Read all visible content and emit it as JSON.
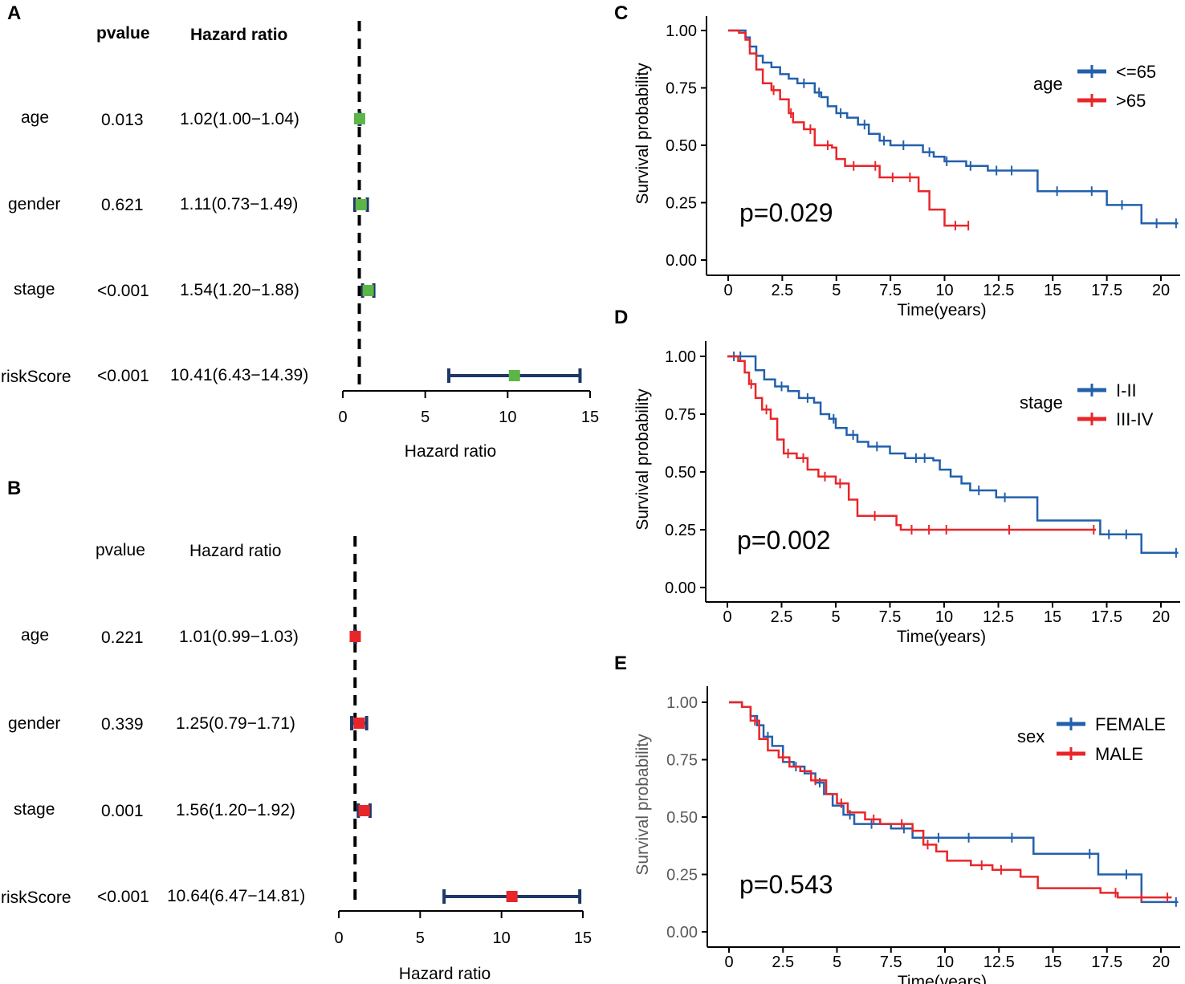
{
  "chart_data": [
    {
      "panel": "A",
      "type": "forest",
      "col_headers": {
        "pvalue": "pvalue",
        "hr": "Hazard ratio"
      },
      "rows": [
        {
          "label": "age",
          "pvalue": "0.013",
          "hr_text": "1.02(1.00−1.04)",
          "hr": 1.02,
          "low": 1.0,
          "high": 1.04
        },
        {
          "label": "gender",
          "pvalue": "0.621",
          "hr_text": "1.11(0.73−1.49)",
          "hr": 1.11,
          "low": 0.73,
          "high": 1.49
        },
        {
          "label": "stage",
          "pvalue": "<0.001",
          "hr_text": "1.54(1.20−1.88)",
          "hr": 1.54,
          "low": 1.2,
          "high": 1.88
        },
        {
          "label": "riskScore",
          "pvalue": "<0.001",
          "hr_text": "10.41(6.43−14.39)",
          "hr": 10.41,
          "low": 6.43,
          "high": 14.39
        }
      ],
      "xlabel": "Hazard ratio",
      "xticks": [
        0,
        5,
        10,
        15
      ],
      "xlim": [
        0,
        15
      ],
      "reference_line": 1,
      "marker_color": "#5BB646",
      "ci_color": "#1F3769"
    },
    {
      "panel": "B",
      "type": "forest",
      "col_headers": {
        "pvalue": "pvalue",
        "hr": "Hazard ratio"
      },
      "rows": [
        {
          "label": "age",
          "pvalue": "0.221",
          "hr_text": "1.01(0.99−1.03)",
          "hr": 1.01,
          "low": 0.99,
          "high": 1.03
        },
        {
          "label": "gender",
          "pvalue": "0.339",
          "hr_text": "1.25(0.79−1.71)",
          "hr": 1.25,
          "low": 0.79,
          "high": 1.71
        },
        {
          "label": "stage",
          "pvalue": "0.001",
          "hr_text": "1.56(1.20−1.92)",
          "hr": 1.56,
          "low": 1.2,
          "high": 1.92
        },
        {
          "label": "riskScore",
          "pvalue": "<0.001",
          "hr_text": "10.64(6.47−14.81)",
          "hr": 10.64,
          "low": 6.47,
          "high": 14.81
        }
      ],
      "xlabel": "Hazard ratio",
      "xticks": [
        0,
        5,
        10,
        15
      ],
      "xlim": [
        0,
        15
      ],
      "reference_line": 1,
      "marker_color": "#E8262A",
      "ci_color": "#1F3769"
    },
    {
      "panel": "C",
      "type": "line",
      "subtype": "kaplan-meier",
      "xlabel": "Time(years)",
      "ylabel": "Survival probability",
      "xlim": [
        0,
        21
      ],
      "ylim": [
        0,
        1
      ],
      "xticks": [
        "0",
        "2.5",
        "5",
        "7.5",
        "10",
        "12.5",
        "15",
        "17.5",
        "20"
      ],
      "yticks": [
        "0.00",
        "0.25",
        "0.50",
        "0.75",
        "1.00"
      ],
      "pvalue": "p=0.029",
      "legend_title": "age",
      "series": [
        {
          "name": "<=65",
          "color": "#2260AC",
          "points": [
            [
              0,
              1.0
            ],
            [
              0.5,
              1.0
            ],
            [
              0.8,
              0.97
            ],
            [
              1.0,
              0.93
            ],
            [
              1.3,
              0.89
            ],
            [
              1.6,
              0.86
            ],
            [
              2.0,
              0.84
            ],
            [
              2.4,
              0.81
            ],
            [
              2.8,
              0.79
            ],
            [
              3.2,
              0.77
            ],
            [
              3.8,
              0.77
            ],
            [
              4.0,
              0.73
            ],
            [
              4.3,
              0.71
            ],
            [
              4.6,
              0.67
            ],
            [
              5.0,
              0.64
            ],
            [
              5.5,
              0.62
            ],
            [
              6.0,
              0.59
            ],
            [
              6.5,
              0.55
            ],
            [
              7.0,
              0.52
            ],
            [
              7.5,
              0.5
            ],
            [
              8.5,
              0.5
            ],
            [
              9.0,
              0.47
            ],
            [
              9.5,
              0.45
            ],
            [
              10.0,
              0.43
            ],
            [
              11.0,
              0.41
            ],
            [
              12.0,
              0.39
            ],
            [
              14.0,
              0.39
            ],
            [
              14.3,
              0.3
            ],
            [
              17.0,
              0.3
            ],
            [
              17.5,
              0.24
            ],
            [
              19.0,
              0.24
            ],
            [
              19.1,
              0.16
            ],
            [
              20.8,
              0.16
            ]
          ],
          "censor_times": [
            3.5,
            4.2,
            5.2,
            6.3,
            7.2,
            8.1,
            9.3,
            10.1,
            11.2,
            12.4,
            13.1,
            15.2,
            16.8,
            18.2,
            19.8,
            20.7
          ]
        },
        {
          "name": ">65",
          "color": "#E8262A",
          "points": [
            [
              0,
              1.0
            ],
            [
              0.5,
              0.99
            ],
            [
              0.8,
              0.96
            ],
            [
              1.0,
              0.9
            ],
            [
              1.3,
              0.83
            ],
            [
              1.6,
              0.77
            ],
            [
              2.0,
              0.74
            ],
            [
              2.4,
              0.7
            ],
            [
              2.8,
              0.64
            ],
            [
              3.0,
              0.6
            ],
            [
              3.5,
              0.57
            ],
            [
              4.0,
              0.5
            ],
            [
              4.8,
              0.49
            ],
            [
              5.0,
              0.44
            ],
            [
              5.4,
              0.41
            ],
            [
              6.0,
              0.41
            ],
            [
              7.0,
              0.36
            ],
            [
              8.5,
              0.36
            ],
            [
              8.8,
              0.3
            ],
            [
              9.3,
              0.22
            ],
            [
              10.0,
              0.15
            ],
            [
              11.1,
              0.15
            ]
          ],
          "censor_times": [
            2.1,
            2.9,
            3.8,
            4.6,
            5.8,
            6.8,
            7.6,
            8.4,
            10.5,
            11.1
          ]
        }
      ]
    },
    {
      "panel": "D",
      "type": "line",
      "subtype": "kaplan-meier",
      "xlabel": "Time(years)",
      "ylabel": "Survival probability",
      "xlim": [
        0,
        21
      ],
      "ylim": [
        0,
        1
      ],
      "xticks": [
        "0",
        "2.5",
        "5",
        "7.5",
        "10",
        "12.5",
        "15",
        "17.5",
        "20"
      ],
      "yticks": [
        "0.00",
        "0.25",
        "0.50",
        "0.75",
        "1.00"
      ],
      "pvalue": "p=0.002",
      "legend_title": "stage",
      "series": [
        {
          "name": "I-II",
          "color": "#2260AC",
          "points": [
            [
              0,
              1.0
            ],
            [
              1.0,
              1.0
            ],
            [
              1.3,
              0.94
            ],
            [
              1.7,
              0.9
            ],
            [
              2.2,
              0.87
            ],
            [
              2.8,
              0.85
            ],
            [
              3.3,
              0.82
            ],
            [
              4.0,
              0.8
            ],
            [
              4.3,
              0.75
            ],
            [
              4.7,
              0.73
            ],
            [
              5.0,
              0.69
            ],
            [
              5.5,
              0.66
            ],
            [
              6.0,
              0.63
            ],
            [
              6.5,
              0.61
            ],
            [
              7.5,
              0.58
            ],
            [
              8.2,
              0.56
            ],
            [
              9.5,
              0.55
            ],
            [
              9.8,
              0.51
            ],
            [
              10.3,
              0.48
            ],
            [
              10.8,
              0.45
            ],
            [
              11.2,
              0.42
            ],
            [
              12.0,
              0.42
            ],
            [
              12.4,
              0.39
            ],
            [
              14.0,
              0.39
            ],
            [
              14.3,
              0.29
            ],
            [
              17.0,
              0.29
            ],
            [
              17.2,
              0.23
            ],
            [
              19.0,
              0.23
            ],
            [
              19.1,
              0.15
            ],
            [
              20.8,
              0.15
            ]
          ],
          "censor_times": [
            0.3,
            0.6,
            2.5,
            3.7,
            4.9,
            5.8,
            6.9,
            8.7,
            9.1,
            11.6,
            12.8,
            17.6,
            18.4,
            20.7
          ]
        },
        {
          "name": "III-IV",
          "color": "#E8262A",
          "points": [
            [
              0,
              1.0
            ],
            [
              0.5,
              0.98
            ],
            [
              0.8,
              0.93
            ],
            [
              1.0,
              0.88
            ],
            [
              1.3,
              0.82
            ],
            [
              1.6,
              0.77
            ],
            [
              2.0,
              0.73
            ],
            [
              2.3,
              0.64
            ],
            [
              2.6,
              0.58
            ],
            [
              3.2,
              0.56
            ],
            [
              3.7,
              0.51
            ],
            [
              4.2,
              0.48
            ],
            [
              5.0,
              0.45
            ],
            [
              5.6,
              0.38
            ],
            [
              6.0,
              0.31
            ],
            [
              7.0,
              0.31
            ],
            [
              7.8,
              0.27
            ],
            [
              8.0,
              0.25
            ],
            [
              17.0,
              0.25
            ]
          ],
          "censor_times": [
            1.1,
            1.8,
            2.8,
            3.5,
            4.5,
            5.2,
            6.8,
            8.5,
            9.3,
            10.1,
            13.0,
            16.9
          ]
        }
      ]
    },
    {
      "panel": "E",
      "type": "line",
      "subtype": "kaplan-meier",
      "xlabel": "Time(years)",
      "ylabel": "Survival probability",
      "xlim": [
        0,
        21
      ],
      "ylim": [
        0,
        1
      ],
      "xticks": [
        "0",
        "2.5",
        "5",
        "7.5",
        "10",
        "12.5",
        "15",
        "17.5",
        "20"
      ],
      "yticks": [
        "0.00",
        "0.25",
        "0.50",
        "0.75",
        "1.00"
      ],
      "pvalue": "p=0.543",
      "legend_title": "sex",
      "series": [
        {
          "name": "FEMALE",
          "color": "#2260AC",
          "points": [
            [
              0,
              1.0
            ],
            [
              0.6,
              0.98
            ],
            [
              1.0,
              0.94
            ],
            [
              1.3,
              0.9
            ],
            [
              1.6,
              0.85
            ],
            [
              2.0,
              0.81
            ],
            [
              2.5,
              0.74
            ],
            [
              3.0,
              0.72
            ],
            [
              3.5,
              0.69
            ],
            [
              4.0,
              0.65
            ],
            [
              4.4,
              0.6
            ],
            [
              4.8,
              0.55
            ],
            [
              5.3,
              0.51
            ],
            [
              5.8,
              0.47
            ],
            [
              7.0,
              0.47
            ],
            [
              7.5,
              0.45
            ],
            [
              8.5,
              0.41
            ],
            [
              10.0,
              0.41
            ],
            [
              12.0,
              0.41
            ],
            [
              14.0,
              0.41
            ],
            [
              14.1,
              0.34
            ],
            [
              16.9,
              0.34
            ],
            [
              17.1,
              0.25
            ],
            [
              19.0,
              0.25
            ],
            [
              19.1,
              0.13
            ],
            [
              20.8,
              0.13
            ]
          ],
          "censor_times": [
            1.8,
            3.1,
            4.2,
            5.6,
            6.6,
            8.1,
            9.7,
            11.1,
            13.1,
            16.7,
            18.4,
            20.7
          ]
        },
        {
          "name": "MALE",
          "color": "#E8262A",
          "points": [
            [
              0,
              1.0
            ],
            [
              0.6,
              0.98
            ],
            [
              1.0,
              0.92
            ],
            [
              1.4,
              0.84
            ],
            [
              1.8,
              0.79
            ],
            [
              2.3,
              0.76
            ],
            [
              2.8,
              0.72
            ],
            [
              3.3,
              0.7
            ],
            [
              3.8,
              0.66
            ],
            [
              4.5,
              0.6
            ],
            [
              5.0,
              0.56
            ],
            [
              5.5,
              0.52
            ],
            [
              6.3,
              0.49
            ],
            [
              7.0,
              0.47
            ],
            [
              8.5,
              0.44
            ],
            [
              9.0,
              0.38
            ],
            [
              9.6,
              0.35
            ],
            [
              10.1,
              0.31
            ],
            [
              11.2,
              0.29
            ],
            [
              12.2,
              0.27
            ],
            [
              13.5,
              0.24
            ],
            [
              14.3,
              0.19
            ],
            [
              17.2,
              0.17
            ],
            [
              18.0,
              0.15
            ],
            [
              20.2,
              0.15
            ],
            [
              20.5,
              0.15
            ]
          ],
          "censor_times": [
            1.2,
            2.5,
            4.0,
            5.2,
            6.7,
            8.0,
            9.2,
            11.7,
            12.6,
            17.9,
            19.1,
            20.3
          ]
        }
      ]
    }
  ]
}
